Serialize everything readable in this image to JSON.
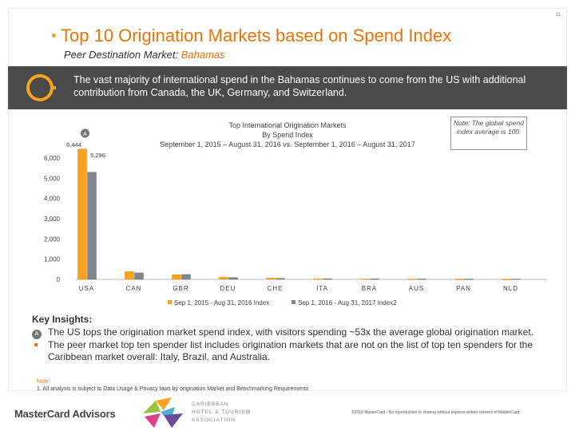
{
  "page_number": "11",
  "title": "Top 10 Origination Markets based on Spend Index",
  "subtitle_label": "Peer Destination Market:",
  "subtitle_market": "Bahamas",
  "banner_text": "The vast majority of international spend in the Bahamas continues to come from the US with additional contribution from Canada, the UK, Germany, and Switzerland.",
  "note_box": "Note: The global spend index average is 100.",
  "colors": {
    "accent": "#e8740c",
    "series1": "#f7a31c",
    "series2": "#7f8790",
    "banner": "#4a4a4a"
  },
  "chart_data": {
    "type": "bar",
    "title": "Top International Origination Markets",
    "subtitle": "By Spend Index",
    "date_range": "September 1, 2015 – August 31, 2016 vs. September 1, 2016 – August 31, 2017",
    "categories": [
      "USA",
      "CAN",
      "GBR",
      "DEU",
      "CHE",
      "ITA",
      "BRA",
      "AUS",
      "PAN",
      "NLD"
    ],
    "series": [
      {
        "name": "Sep 1, 2015 - Aug 31, 2016 Index",
        "values": [
          6444,
          380,
          230,
          100,
          60,
          20,
          20,
          15,
          10,
          10
        ]
      },
      {
        "name": "Sep 1, 2016 - Aug 31, 2017 Index2",
        "values": [
          5296,
          320,
          240,
          90,
          50,
          30,
          25,
          20,
          15,
          15
        ]
      }
    ],
    "data_labels": [
      {
        "category": "USA",
        "series": 0,
        "text": "6,444"
      },
      {
        "category": "USA",
        "series": 1,
        "text": "5,296"
      }
    ],
    "annotation": "A",
    "y_ticks": [
      "0",
      "1,000",
      "2,000",
      "3,000",
      "4,000",
      "5,000",
      "6,000"
    ],
    "y_tick_values": [
      0,
      1000,
      2000,
      3000,
      4000,
      5000,
      6000
    ],
    "ylim": [
      0,
      6000
    ],
    "legend_position": "bottom",
    "grid": false
  },
  "insights": {
    "heading": "Key Insights:",
    "items": [
      {
        "marker": "A",
        "text": "The US tops the origination market spend index, with visitors spending ~53x the average global origination market."
      },
      {
        "marker": "",
        "text": "The peer market top ten spender list includes origination markets that are not on the list of top ten spenders for the Caribbean market overall: Italy, Brazil, and Australia."
      }
    ]
  },
  "footnote": {
    "label": "Note:",
    "text": "1. All analysis is subject to Data Usage & Privacy laws by origination Market and Benchmarking Requirements"
  },
  "logo_mastercard": "MasterCard Advisors",
  "logo_chta_lines": [
    "CARIBBEAN",
    "HOTEL & TOURISM",
    "ASSOCIATION"
  ],
  "copyright": "©2018 MasterCard - No reproduction or sharing without express written consent of MasterCard"
}
